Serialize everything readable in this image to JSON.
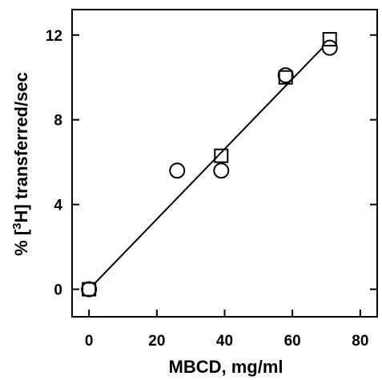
{
  "chart_data": {
    "type": "scatter",
    "xlabel": "MBCD, mg/ml",
    "ylabel": {
      "prefix": "% [",
      "superscript": "3",
      "suffix": "H] transferred/sec"
    },
    "xlim": [
      -5,
      85
    ],
    "ylim": [
      -1.3,
      13.2
    ],
    "xticks": [
      0,
      20,
      40,
      60,
      80
    ],
    "yticks": [
      0,
      4,
      8,
      12
    ],
    "grid": false,
    "series": [
      {
        "marker": "circle",
        "points": [
          [
            0,
            0
          ],
          [
            26,
            5.6
          ],
          [
            39,
            5.6
          ],
          [
            58,
            10.1
          ],
          [
            71,
            11.4
          ]
        ]
      },
      {
        "marker": "square",
        "points": [
          [
            0,
            0
          ],
          [
            39,
            6.3
          ],
          [
            58,
            10.0
          ],
          [
            71,
            11.8
          ]
        ]
      }
    ],
    "fit_line": {
      "x": [
        0,
        71
      ],
      "y": [
        0,
        11.75
      ]
    }
  }
}
